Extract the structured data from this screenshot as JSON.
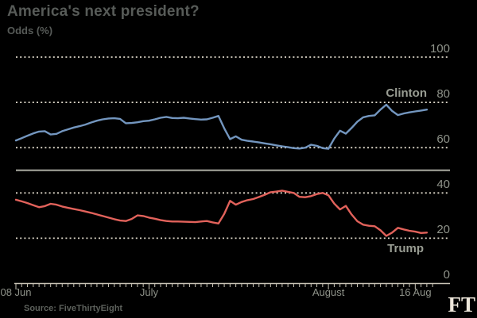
{
  "header": {
    "title": "America's next president?",
    "subtitle": "Odds (%)"
  },
  "footer": {
    "source": "Source: FiveThirtyEight",
    "logo": "FT"
  },
  "chart_data": {
    "type": "line",
    "title": "America's next president?",
    "ylabel": "Odds (%)",
    "ylim": [
      0,
      100
    ],
    "grid": "dotted horizontal gridlines every 20, solid reference line at 50, solid baseline at 0",
    "legend_position": "inline labels at right end of each line",
    "y_ticks": [
      100,
      80,
      60,
      40,
      20,
      0
    ],
    "y_reference_line": 50,
    "x_ticks": [
      {
        "index": 0,
        "label": "08 Jun"
      },
      {
        "index": 23,
        "label": "July"
      },
      {
        "index": 54,
        "label": "August"
      },
      {
        "index": 69,
        "label": "16 Aug"
      }
    ],
    "x_unit": "days (daily points from 08 Jun to just past 16 Aug)",
    "colors": {
      "background": "#000000",
      "grid_dotted": "#ddd7c9",
      "reference_line": "#9b9c93",
      "axis_line": "#c9c4b6",
      "axis_text": "#8e9289",
      "title_text": "#575b58",
      "ft_logo": "#eee7db"
    },
    "series": [
      {
        "name": "Clinton",
        "color": "#7396bf",
        "values": [
          63.2,
          64.2,
          65.3,
          66.3,
          67.1,
          67.3,
          65.8,
          66.1,
          67.3,
          68.1,
          68.9,
          69.5,
          70.2,
          71.1,
          71.9,
          72.5,
          72.9,
          73.0,
          72.7,
          70.8,
          70.9,
          71.2,
          71.7,
          71.9,
          72.5,
          73.2,
          73.6,
          73.1,
          73.0,
          73.2,
          72.9,
          72.6,
          72.4,
          72.5,
          73.2,
          74.0,
          68.5,
          63.8,
          65.0,
          63.5,
          63.0,
          62.7,
          62.3,
          61.9,
          61.5,
          61.0,
          60.6,
          60.2,
          59.8,
          59.6,
          60.0,
          61.3,
          60.8,
          59.8,
          59.5,
          64.0,
          67.5,
          66.2,
          68.7,
          71.5,
          73.4,
          74.0,
          74.3,
          76.8,
          79.0,
          76.2,
          74.4,
          75.1,
          75.6,
          76.0,
          76.4,
          76.8
        ]
      },
      {
        "name": "Trump",
        "color": "#e2625b",
        "values": [
          37.0,
          36.3,
          35.5,
          34.6,
          33.7,
          34.2,
          35.2,
          34.8,
          34.0,
          33.4,
          32.9,
          32.4,
          31.8,
          31.2,
          30.5,
          29.8,
          29.1,
          28.4,
          27.8,
          27.6,
          28.5,
          30.1,
          29.8,
          29.1,
          28.6,
          28.0,
          27.6,
          27.4,
          27.4,
          27.3,
          27.2,
          27.1,
          27.4,
          27.6,
          27.0,
          26.5,
          30.8,
          36.5,
          34.8,
          36.0,
          36.8,
          37.3,
          38.2,
          39.2,
          40.3,
          40.6,
          41.0,
          40.5,
          40.0,
          38.3,
          38.1,
          38.6,
          39.5,
          40.0,
          39.0,
          35.3,
          32.7,
          34.3,
          30.5,
          27.5,
          26.0,
          25.5,
          25.3,
          23.5,
          21.0,
          22.5,
          24.6,
          23.9,
          23.3,
          22.9,
          22.3,
          22.5
        ]
      }
    ]
  }
}
